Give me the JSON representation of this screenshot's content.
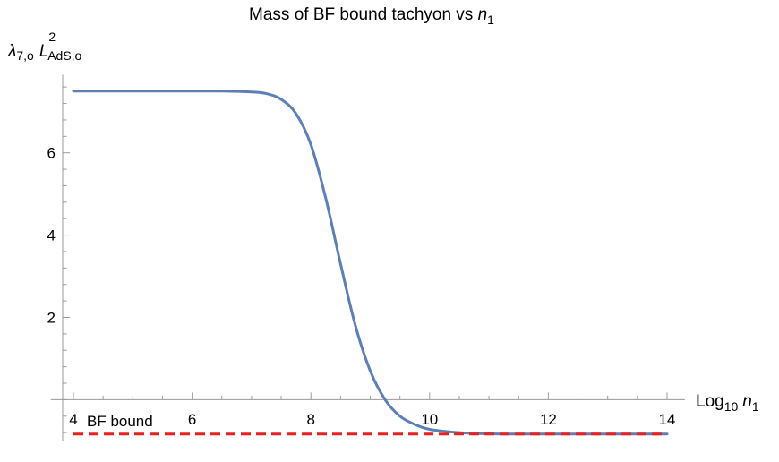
{
  "chart_data": {
    "type": "line",
    "title": {
      "prefix": "Mass of BF bound tachyon vs ",
      "var": "n",
      "sub": "1"
    },
    "ylabel": {
      "lambda": "λ",
      "lambda_sub": "7,o",
      "L": "L",
      "L_sup": "2",
      "L_sub": "AdS,o"
    },
    "xlabel": {
      "log": "Log",
      "log_sub": "10",
      "var": "n",
      "var_sub": "1"
    },
    "xlim": [
      3.8,
      14.3
    ],
    "ylim": [
      -1.0,
      7.9
    ],
    "xticks": [
      4,
      6,
      8,
      10,
      12,
      14
    ],
    "yticks": [
      2,
      4,
      6
    ],
    "colors": {
      "curve": "#5b7fb6",
      "bound": "#e8211f"
    },
    "series": [
      {
        "style": "solid",
        "x": [
          4.0,
          5.0,
          6.0,
          6.5,
          7.0,
          7.25,
          7.5,
          7.75,
          8.0,
          8.25,
          8.5,
          8.75,
          9.0,
          9.25,
          9.5,
          9.75,
          10.0,
          10.5,
          11.0,
          11.5,
          12.0,
          13.0,
          14.0
        ],
        "y": [
          7.5,
          7.5,
          7.5,
          7.5,
          7.48,
          7.44,
          7.3,
          6.95,
          6.2,
          4.9,
          3.3,
          1.8,
          0.7,
          0.0,
          -0.4,
          -0.6,
          -0.72,
          -0.8,
          -0.83,
          -0.835,
          -0.835,
          -0.835,
          -0.835
        ]
      },
      {
        "name": "BF bound",
        "style": "dashed",
        "x": [
          4.0,
          14.0
        ],
        "y": [
          -0.835,
          -0.835
        ]
      }
    ],
    "annotation": "BF bound"
  }
}
